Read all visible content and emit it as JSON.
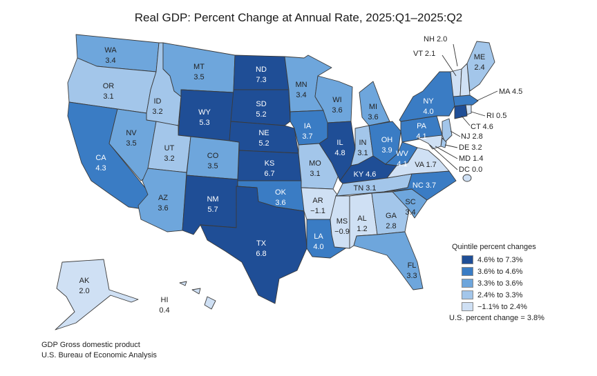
{
  "title": "Real GDP: Percent Change at Annual Rate, 2025:Q1–2025:Q2",
  "legend": {
    "title": "Quintile percent changes",
    "items": [
      {
        "label": "4.6% to 7.3%",
        "color": "#1f4e96"
      },
      {
        "label": "3.6% to 4.6%",
        "color": "#3a7cc4"
      },
      {
        "label": "3.3% to 3.6%",
        "color": "#6ea6dc"
      },
      {
        "label": "2.4% to 3.3%",
        "color": "#a3c6ea"
      },
      {
        "label": "−1.1% to 2.4%",
        "color": "#cfe0f4"
      }
    ],
    "us_note": "U.S. percent change = 3.8%"
  },
  "footer": {
    "line1": "GDP Gross domestic product",
    "line2": "U.S. Bureau of Economic Analysis"
  },
  "states": [
    {
      "abbr": "WA",
      "value": "3.4",
      "quintile": 2
    },
    {
      "abbr": "OR",
      "value": "3.1",
      "quintile": 3
    },
    {
      "abbr": "CA",
      "value": "4.3",
      "quintile": 1
    },
    {
      "abbr": "ID",
      "value": "3.2",
      "quintile": 3
    },
    {
      "abbr": "NV",
      "value": "3.5",
      "quintile": 2
    },
    {
      "abbr": "MT",
      "value": "3.5",
      "quintile": 2
    },
    {
      "abbr": "WY",
      "value": "5.3",
      "quintile": 0
    },
    {
      "abbr": "UT",
      "value": "3.2",
      "quintile": 3
    },
    {
      "abbr": "AZ",
      "value": "3.6",
      "quintile": 2
    },
    {
      "abbr": "CO",
      "value": "3.5",
      "quintile": 2
    },
    {
      "abbr": "NM",
      "value": "5.7",
      "quintile": 0
    },
    {
      "abbr": "ND",
      "value": "7.3",
      "quintile": 0
    },
    {
      "abbr": "SD",
      "value": "5.2",
      "quintile": 0
    },
    {
      "abbr": "NE",
      "value": "5.2",
      "quintile": 0
    },
    {
      "abbr": "KS",
      "value": "6.7",
      "quintile": 0
    },
    {
      "abbr": "OK",
      "value": "3.6",
      "quintile": 1
    },
    {
      "abbr": "TX",
      "value": "6.8",
      "quintile": 0
    },
    {
      "abbr": "MN",
      "value": "3.4",
      "quintile": 2
    },
    {
      "abbr": "IA",
      "value": "3.7",
      "quintile": 1
    },
    {
      "abbr": "MO",
      "value": "3.1",
      "quintile": 3
    },
    {
      "abbr": "AR",
      "value": "−1.1",
      "quintile": 4
    },
    {
      "abbr": "LA",
      "value": "4.0",
      "quintile": 1
    },
    {
      "abbr": "WI",
      "value": "3.6",
      "quintile": 2
    },
    {
      "abbr": "IL",
      "value": "4.8",
      "quintile": 0
    },
    {
      "abbr": "MI",
      "value": "3.6",
      "quintile": 2
    },
    {
      "abbr": "IN",
      "value": "3.1",
      "quintile": 3
    },
    {
      "abbr": "OH",
      "value": "3.9",
      "quintile": 1
    },
    {
      "abbr": "KY",
      "value": "4.6",
      "quintile": 0
    },
    {
      "abbr": "TN",
      "value": "3.1",
      "quintile": 3
    },
    {
      "abbr": "MS",
      "value": "−0.9",
      "quintile": 4
    },
    {
      "abbr": "AL",
      "value": "1.2",
      "quintile": 4
    },
    {
      "abbr": "GA",
      "value": "2.8",
      "quintile": 3
    },
    {
      "abbr": "FL",
      "value": "3.3",
      "quintile": 2
    },
    {
      "abbr": "SC",
      "value": "3.4",
      "quintile": 2
    },
    {
      "abbr": "NC",
      "value": "3.7",
      "quintile": 1
    },
    {
      "abbr": "VA",
      "value": "1.7",
      "quintile": 4
    },
    {
      "abbr": "WV",
      "value": "4.1",
      "quintile": 1
    },
    {
      "abbr": "PA",
      "value": "4.1",
      "quintile": 1
    },
    {
      "abbr": "NY",
      "value": "4.0",
      "quintile": 1
    },
    {
      "abbr": "VT",
      "value": "2.1",
      "quintile": 4
    },
    {
      "abbr": "NH",
      "value": "2.0",
      "quintile": 4
    },
    {
      "abbr": "ME",
      "value": "2.4",
      "quintile": 3
    },
    {
      "abbr": "MA",
      "value": "4.5",
      "quintile": 1
    },
    {
      "abbr": "RI",
      "value": "0.5",
      "quintile": 4
    },
    {
      "abbr": "CT",
      "value": "4.6",
      "quintile": 0
    },
    {
      "abbr": "NJ",
      "value": "2.8",
      "quintile": 3
    },
    {
      "abbr": "DE",
      "value": "3.2",
      "quintile": 3
    },
    {
      "abbr": "MD",
      "value": "1.4",
      "quintile": 4
    },
    {
      "abbr": "DC",
      "value": "0.0",
      "quintile": 4
    },
    {
      "abbr": "AK",
      "value": "2.0",
      "quintile": 4
    },
    {
      "abbr": "HI",
      "value": "0.4",
      "quintile": 4
    }
  ]
}
